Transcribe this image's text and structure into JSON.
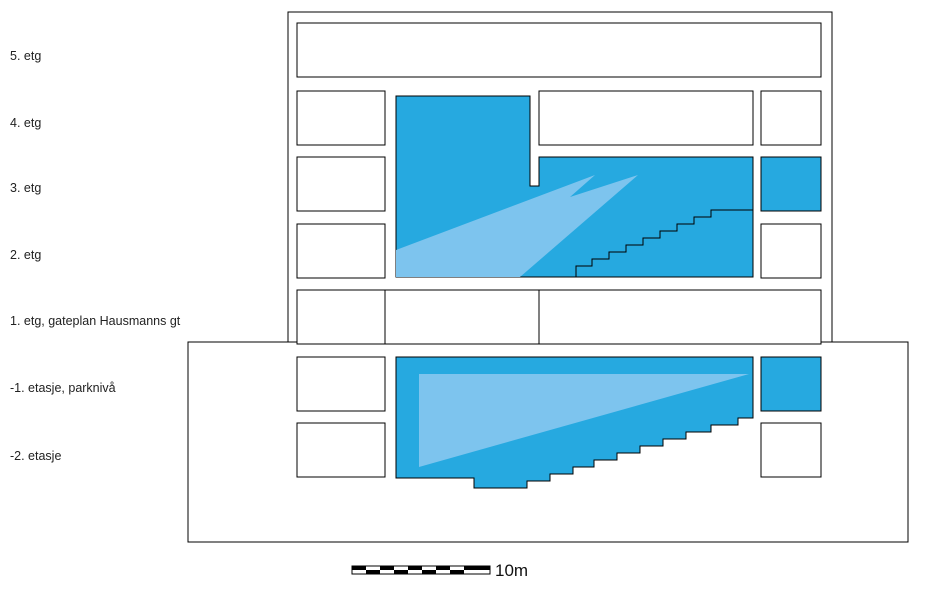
{
  "floors": [
    {
      "label": "5. etg"
    },
    {
      "label": "4. etg"
    },
    {
      "label": "3. etg"
    },
    {
      "label": "2. etg"
    },
    {
      "label": "1. etg, gateplan Hausmanns gt"
    },
    {
      "label": "-1. etasje, parknivå"
    },
    {
      "label": "-2. etasje"
    }
  ],
  "scale_bar": {
    "label": "10m"
  },
  "colors": {
    "volume_blue": "#26A9E0",
    "light_blue": "#7DC4EE",
    "outline": "#000000",
    "background": "#FFFFFF"
  }
}
